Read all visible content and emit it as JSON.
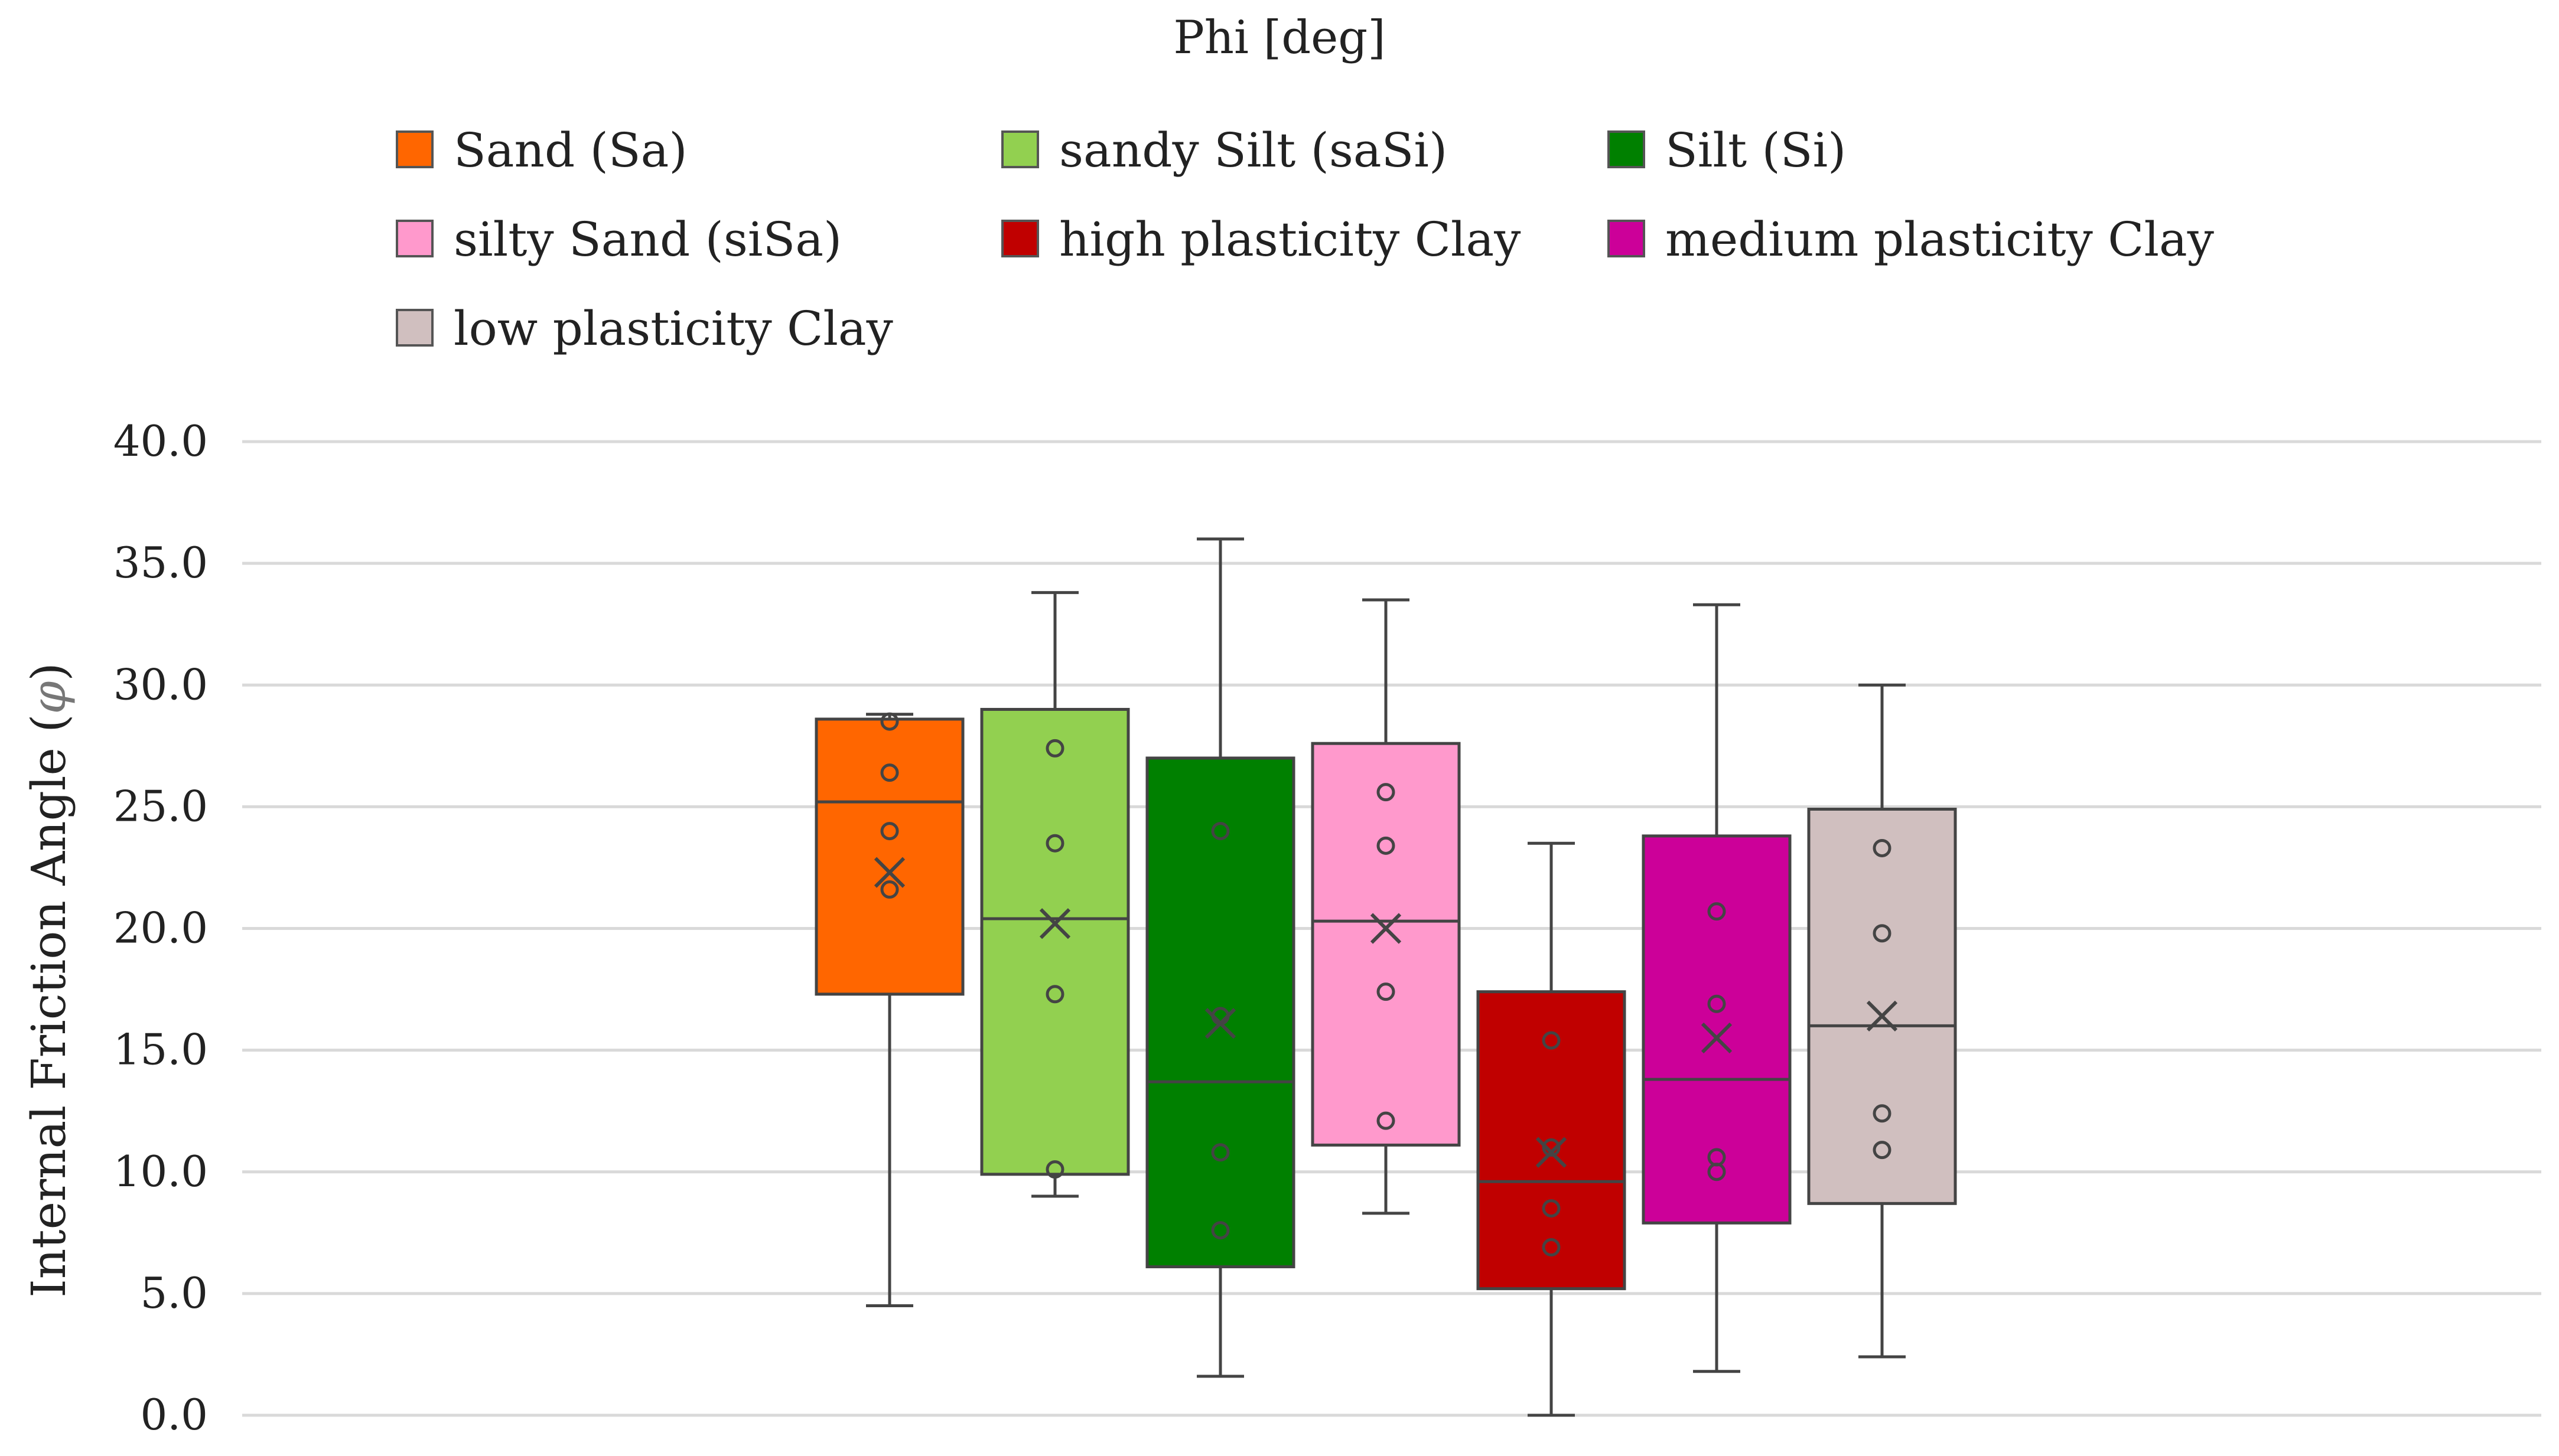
{
  "chart_data": {
    "type": "box",
    "title": "Phi [deg]",
    "xlabel": "",
    "ylabel": "Internal Friction Angle (",
    "ylabel_symbol": "φ",
    "ylabel_close": ")",
    "ylim": [
      0,
      40
    ],
    "yticks": [
      0,
      5,
      10,
      15,
      20,
      25,
      30,
      35,
      40
    ],
    "ytick_labels": [
      "0.0",
      "5.0",
      "10.0",
      "15.0",
      "20.0",
      "25.0",
      "30.0",
      "35.0",
      "40.0"
    ],
    "grid": true,
    "legend_position": "top",
    "series": [
      {
        "name": "Sand (Sa)",
        "color": "#FF6600",
        "min": 4.5,
        "q1": 17.3,
        "median": 25.2,
        "q3": 28.6,
        "max": 28.8,
        "mean": 22.3,
        "points": [
          28.5,
          26.4,
          24.0,
          21.6
        ]
      },
      {
        "name": "sandy Silt (saSi)",
        "color": "#92D050",
        "min": 9.0,
        "q1": 9.9,
        "median": 20.4,
        "q3": 29.0,
        "max": 33.8,
        "mean": 20.2,
        "points": [
          27.4,
          23.5,
          17.3,
          10.1
        ]
      },
      {
        "name": "Silt (Si)",
        "color": "#008000",
        "min": 1.6,
        "q1": 6.1,
        "median": 13.7,
        "q3": 27.0,
        "max": 36.0,
        "mean": 16.1,
        "points": [
          24.0,
          16.4,
          10.8,
          7.6
        ]
      },
      {
        "name": "silty Sand (siSa)",
        "color": "#FF99CC",
        "min": 8.3,
        "q1": 11.1,
        "median": 20.3,
        "q3": 27.6,
        "max": 33.5,
        "mean": 20.0,
        "points": [
          25.6,
          23.4,
          17.4,
          12.1
        ]
      },
      {
        "name": "high plasticity Clay",
        "color": "#C00000",
        "min": 0.0,
        "q1": 5.2,
        "median": 9.6,
        "q3": 17.4,
        "max": 23.5,
        "mean": 10.8,
        "points": [
          15.4,
          11.0,
          8.5,
          6.9
        ]
      },
      {
        "name": "medium plasticity Clay",
        "color": "#CC0099",
        "min": 1.8,
        "q1": 7.9,
        "median": 13.8,
        "q3": 23.8,
        "max": 33.3,
        "mean": 15.5,
        "points": [
          20.7,
          16.9,
          10.6,
          10.0
        ]
      },
      {
        "name": "low plasticity Clay",
        "color": "#D0BFBF",
        "min": 2.4,
        "q1": 8.7,
        "median": 16.0,
        "q3": 24.9,
        "max": 30.0,
        "mean": 16.4,
        "points": [
          23.3,
          19.8,
          12.4,
          10.9
        ]
      }
    ]
  }
}
